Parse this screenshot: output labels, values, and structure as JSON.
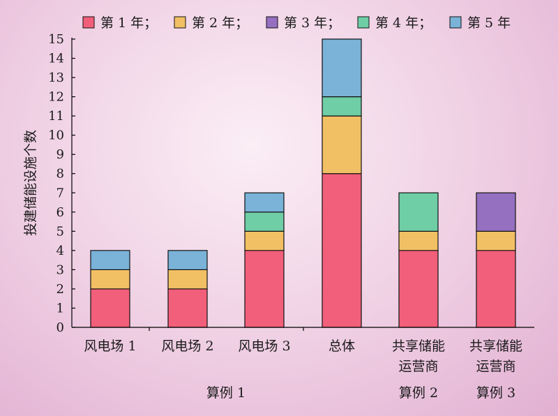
{
  "chart_data": {
    "type": "bar",
    "stacked": true,
    "ylabel": "投建储能设施个数",
    "ylim": [
      0,
      15
    ],
    "yticks": [
      0,
      1,
      2,
      3,
      4,
      5,
      6,
      7,
      8,
      9,
      10,
      11,
      12,
      13,
      14,
      15
    ],
    "legend_position": "top",
    "categories": [
      [
        "风电场 1"
      ],
      [
        "风电场 2"
      ],
      [
        "风电场 3"
      ],
      [
        "总体"
      ],
      [
        "共享储能",
        "运营商"
      ],
      [
        "共享储能",
        "运营商"
      ]
    ],
    "groups": [
      {
        "label": "算例 1",
        "from": 0,
        "to": 3
      },
      {
        "label": "算例 2",
        "from": 4,
        "to": 4
      },
      {
        "label": "算例 3",
        "from": 5,
        "to": 5
      }
    ],
    "series": [
      {
        "name": "第 1 年；",
        "color": "#f25f7a",
        "values": [
          2,
          2,
          4,
          8,
          4,
          4
        ]
      },
      {
        "name": "第 2 年；",
        "color": "#f2c064",
        "values": [
          1,
          1,
          1,
          3,
          1,
          1
        ]
      },
      {
        "name": "第 3 年；",
        "color": "#9570c0",
        "values": [
          0,
          0,
          0,
          0,
          0,
          2
        ]
      },
      {
        "name": "第 4 年；",
        "color": "#6fcea6",
        "values": [
          0,
          0,
          1,
          1,
          2,
          0
        ]
      },
      {
        "name": "第 5 年",
        "color": "#7ab2d8",
        "values": [
          1,
          1,
          1,
          3,
          0,
          0
        ]
      }
    ]
  }
}
